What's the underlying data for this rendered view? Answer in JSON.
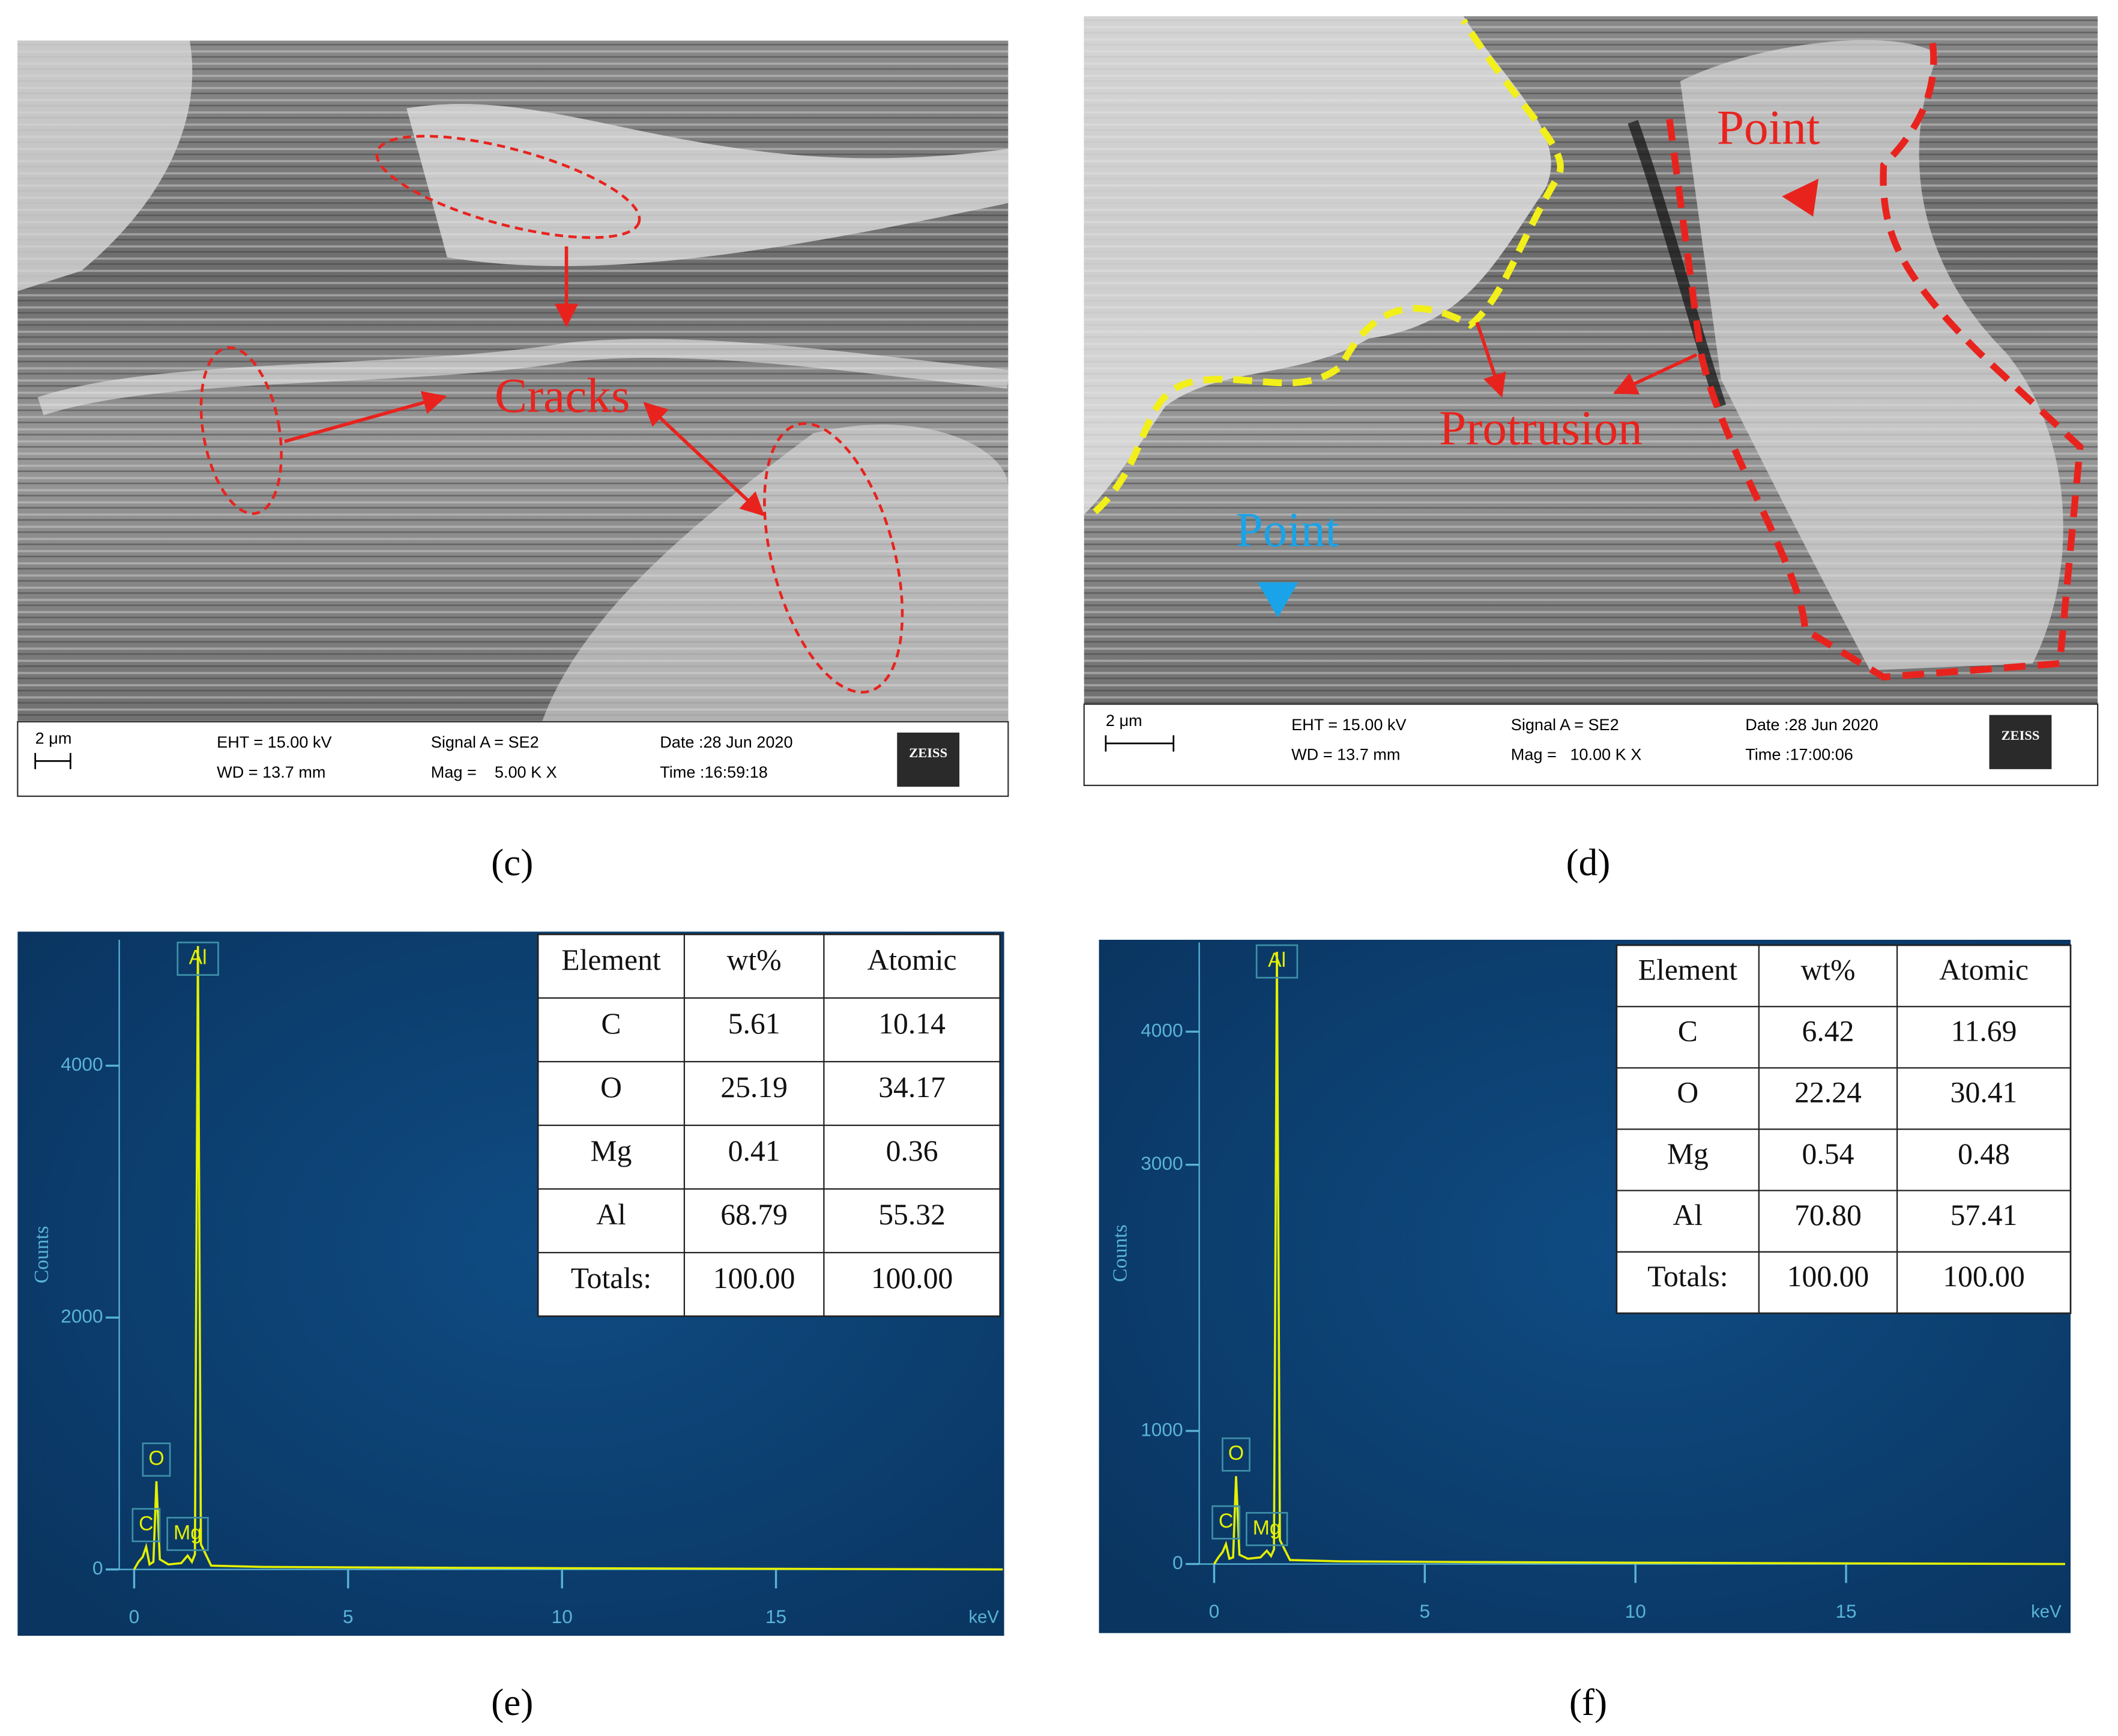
{
  "sem_images": [
    {
      "annotations": [
        {
          "text": "Cracks",
          "color": "#e8231e"
        }
      ],
      "scale_bar": "2 μm",
      "info": [
        "EHT = 15.00 kV",
        "WD = 13.7 mm",
        "Signal A = SE2",
        "Mag =    5.00 K X",
        "Date :28 Jun 2020",
        "Time :16:59:18"
      ],
      "logo": "ZEISS"
    },
    {
      "annotations": [
        {
          "text": "Point",
          "color": "#e8231e"
        },
        {
          "text": "Protrusion",
          "color": "#e8231e"
        },
        {
          "text": "Point",
          "color": "#1aa3e8"
        }
      ],
      "scale_bar": "2 μm",
      "info": [
        "EHT = 15.00 kV",
        "WD = 13.7 mm",
        "Signal A = SE2",
        "Mag =   10.00 K X",
        "Date :28 Jun 2020",
        "Time :17:00:06"
      ],
      "logo": "ZEISS"
    }
  ],
  "panel_labels": [
    "(c)",
    "(d)",
    "(e)",
    "(f)"
  ],
  "chart_data": [
    {
      "type": "line",
      "y_label": "Counts",
      "x_unit": "keV",
      "xlim": [
        0,
        20.3
      ],
      "ylim": [
        0,
        5000
      ],
      "xticks": [
        0,
        5,
        10,
        15
      ],
      "yticks": [
        0,
        2000,
        4000
      ],
      "x": [
        0,
        0.1,
        0.2,
        0.28,
        0.36,
        0.45,
        0.52,
        0.6,
        0.8,
        1.1,
        1.25,
        1.35,
        1.42,
        1.49,
        1.56,
        1.8,
        3,
        6,
        10,
        15,
        20.3
      ],
      "series": [
        {
          "color": "#e4f000",
          "values": [
            0,
            60,
            100,
            180,
            40,
            60,
            700,
            80,
            40,
            50,
            110,
            60,
            120,
            4950,
            200,
            30,
            20,
            15,
            10,
            5,
            0
          ]
        }
      ],
      "annotations": [
        {
          "text": "C",
          "x": 0.28
        },
        {
          "text": "O",
          "x": 0.52
        },
        {
          "text": "Mg",
          "x": 1.25
        },
        {
          "text": "Al",
          "x": 1.49
        }
      ],
      "table": {
        "header": [
          "Element",
          "wt%",
          "Atomic"
        ],
        "rows": [
          [
            "C",
            "5.61",
            "10.14"
          ],
          [
            "O",
            "25.19",
            "34.17"
          ],
          [
            "Mg",
            "0.41",
            "0.36"
          ],
          [
            "Al",
            "68.79",
            "55.32"
          ],
          [
            "Totals:",
            "100.00",
            "100.00"
          ]
        ]
      }
    },
    {
      "type": "line",
      "y_label": "Counts",
      "x_unit": "keV",
      "xlim": [
        0,
        20.2
      ],
      "ylim": [
        0,
        4670
      ],
      "xticks": [
        0,
        5,
        10,
        15
      ],
      "yticks": [
        0,
        1000,
        3000,
        4000
      ],
      "x": [
        0,
        0.1,
        0.2,
        0.28,
        0.36,
        0.45,
        0.52,
        0.6,
        0.8,
        1.1,
        1.25,
        1.35,
        1.42,
        1.49,
        1.56,
        1.8,
        3,
        6,
        10,
        15,
        20.2
      ],
      "series": [
        {
          "color": "#e4f000",
          "values": [
            0,
            50,
            90,
            150,
            40,
            50,
            660,
            70,
            40,
            50,
            100,
            60,
            110,
            4600,
            180,
            30,
            20,
            15,
            10,
            5,
            0
          ]
        }
      ],
      "annotations": [
        {
          "text": "C",
          "x": 0.28
        },
        {
          "text": "O",
          "x": 0.52
        },
        {
          "text": "Mg",
          "x": 1.25
        },
        {
          "text": "Al",
          "x": 1.49
        }
      ],
      "table": {
        "header": [
          "Element",
          "wt%",
          "Atomic"
        ],
        "rows": [
          [
            "C",
            "6.42",
            "11.69"
          ],
          [
            "O",
            "22.24",
            "30.41"
          ],
          [
            "Mg",
            "0.54",
            "0.48"
          ],
          [
            "Al",
            "70.80",
            "57.41"
          ],
          [
            "Totals:",
            "100.00",
            "100.00"
          ]
        ]
      }
    }
  ]
}
